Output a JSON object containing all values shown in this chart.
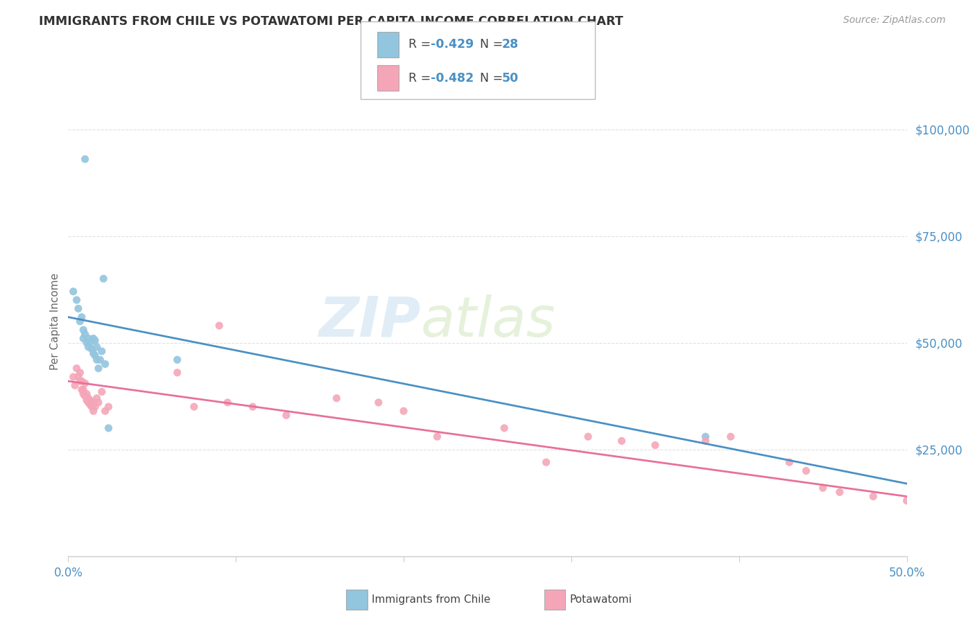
{
  "title": "IMMIGRANTS FROM CHILE VS POTAWATOMI PER CAPITA INCOME CORRELATION CHART",
  "source": "Source: ZipAtlas.com",
  "ylabel": "Per Capita Income",
  "xlim": [
    0,
    0.5
  ],
  "ylim": [
    0,
    110000
  ],
  "yticks": [
    0,
    25000,
    50000,
    75000,
    100000
  ],
  "ytick_labels": [
    "",
    "$25,000",
    "$50,000",
    "$75,000",
    "$100,000"
  ],
  "xticks": [
    0.0,
    0.1,
    0.2,
    0.3,
    0.4,
    0.5
  ],
  "xtick_labels": [
    "0.0%",
    "",
    "",
    "",
    "",
    "50.0%"
  ],
  "blue_color": "#92c5de",
  "pink_color": "#f4a6b8",
  "blue_line_color": "#4a90c4",
  "pink_line_color": "#e8709a",
  "legend_R_blue": "-0.429",
  "legend_N_blue": "28",
  "legend_R_pink": "-0.482",
  "legend_N_pink": "50",
  "watermark_zip": "ZIP",
  "watermark_atlas": "atlas",
  "title_color": "#333333",
  "axis_color": "#cccccc",
  "grid_color": "#e0e0e0",
  "blue_scatter_x": [
    0.003,
    0.005,
    0.006,
    0.007,
    0.008,
    0.009,
    0.009,
    0.01,
    0.011,
    0.012,
    0.012,
    0.013,
    0.014,
    0.015,
    0.015,
    0.016,
    0.016,
    0.017,
    0.017,
    0.018,
    0.019,
    0.02,
    0.021,
    0.022,
    0.024,
    0.065,
    0.38
  ],
  "blue_scatter_y": [
    62000,
    60000,
    58000,
    55000,
    56000,
    51000,
    53000,
    52000,
    50000,
    51000,
    49000,
    50000,
    48500,
    47500,
    51000,
    47000,
    50500,
    49000,
    46000,
    44000,
    46000,
    48000,
    65000,
    45000,
    30000,
    46000,
    28000
  ],
  "blue_outlier_x": [
    0.01
  ],
  "blue_outlier_y": [
    93000
  ],
  "pink_scatter_x": [
    0.003,
    0.004,
    0.005,
    0.006,
    0.007,
    0.007,
    0.008,
    0.008,
    0.009,
    0.009,
    0.01,
    0.01,
    0.011,
    0.011,
    0.012,
    0.012,
    0.013,
    0.013,
    0.014,
    0.015,
    0.015,
    0.016,
    0.017,
    0.018,
    0.02,
    0.022,
    0.024,
    0.065,
    0.075,
    0.09,
    0.095,
    0.11,
    0.13,
    0.16,
    0.185,
    0.2,
    0.22,
    0.26,
    0.285,
    0.31,
    0.33,
    0.35,
    0.38,
    0.395,
    0.43,
    0.44,
    0.45,
    0.46,
    0.48,
    0.5
  ],
  "pink_scatter_y": [
    42000,
    40000,
    44000,
    42000,
    43000,
    41000,
    41000,
    39000,
    39000,
    38000,
    40500,
    37500,
    38000,
    36500,
    37000,
    36000,
    36500,
    35500,
    35000,
    36000,
    34000,
    35000,
    37000,
    36000,
    38500,
    34000,
    35000,
    43000,
    35000,
    54000,
    36000,
    35000,
    33000,
    37000,
    36000,
    34000,
    28000,
    30000,
    22000,
    28000,
    27000,
    26000,
    27000,
    28000,
    22000,
    20000,
    16000,
    15000,
    14000,
    13000
  ],
  "blue_line_x": [
    0.0,
    0.5
  ],
  "blue_line_y": [
    56000,
    17000
  ],
  "pink_line_x": [
    0.0,
    0.5
  ],
  "pink_line_y": [
    41000,
    14000
  ]
}
